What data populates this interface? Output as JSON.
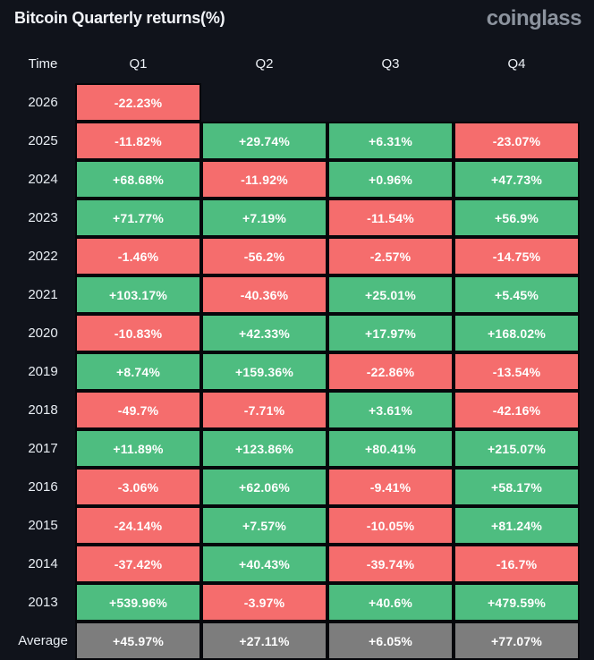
{
  "header": {
    "title": "Bitcoin Quarterly returns(%)",
    "logo": "coinglass"
  },
  "chart_data": {
    "type": "heatmap",
    "title": "Bitcoin Quarterly returns(%)",
    "unit": "%",
    "columns": [
      "Time",
      "Q1",
      "Q2",
      "Q3",
      "Q4"
    ],
    "rows": [
      {
        "time": "2026",
        "kind": "year",
        "values": [
          -22.23,
          null,
          null,
          null
        ]
      },
      {
        "time": "2025",
        "kind": "year",
        "values": [
          -11.82,
          29.74,
          6.31,
          -23.07
        ]
      },
      {
        "time": "2024",
        "kind": "year",
        "values": [
          68.68,
          -11.92,
          0.96,
          47.73
        ]
      },
      {
        "time": "2023",
        "kind": "year",
        "values": [
          71.77,
          7.19,
          -11.54,
          56.9
        ]
      },
      {
        "time": "2022",
        "kind": "year",
        "values": [
          -1.46,
          -56.2,
          -2.57,
          -14.75
        ]
      },
      {
        "time": "2021",
        "kind": "year",
        "values": [
          103.17,
          -40.36,
          25.01,
          5.45
        ]
      },
      {
        "time": "2020",
        "kind": "year",
        "values": [
          -10.83,
          42.33,
          17.97,
          168.02
        ]
      },
      {
        "time": "2019",
        "kind": "year",
        "values": [
          8.74,
          159.36,
          -22.86,
          -13.54
        ]
      },
      {
        "time": "2018",
        "kind": "year",
        "values": [
          -49.7,
          -7.71,
          3.61,
          -42.16
        ]
      },
      {
        "time": "2017",
        "kind": "year",
        "values": [
          11.89,
          123.86,
          80.41,
          215.07
        ]
      },
      {
        "time": "2016",
        "kind": "year",
        "values": [
          -3.06,
          62.06,
          -9.41,
          58.17
        ]
      },
      {
        "time": "2015",
        "kind": "year",
        "values": [
          -24.14,
          7.57,
          -10.05,
          81.24
        ]
      },
      {
        "time": "2014",
        "kind": "year",
        "values": [
          -37.42,
          40.43,
          -39.74,
          -16.7
        ]
      },
      {
        "time": "2013",
        "kind": "year",
        "values": [
          539.96,
          -3.97,
          40.6,
          479.59
        ]
      },
      {
        "time": "Average",
        "kind": "average",
        "values": [
          45.97,
          27.11,
          6.05,
          77.07
        ]
      }
    ],
    "legend": {
      "positive_cells": "green",
      "negative_cells": "red",
      "average_row_cells": "gray"
    }
  },
  "colors": {
    "background": "#10131b",
    "positive_cell": "#4ebd80",
    "negative_cell": "#f56d6d",
    "average_cell": "#7d7d7d",
    "cell_border": "#06070b",
    "title_text": "#f2f4f8",
    "logo_text": "#8c939e",
    "cell_text": "#ffffff"
  }
}
